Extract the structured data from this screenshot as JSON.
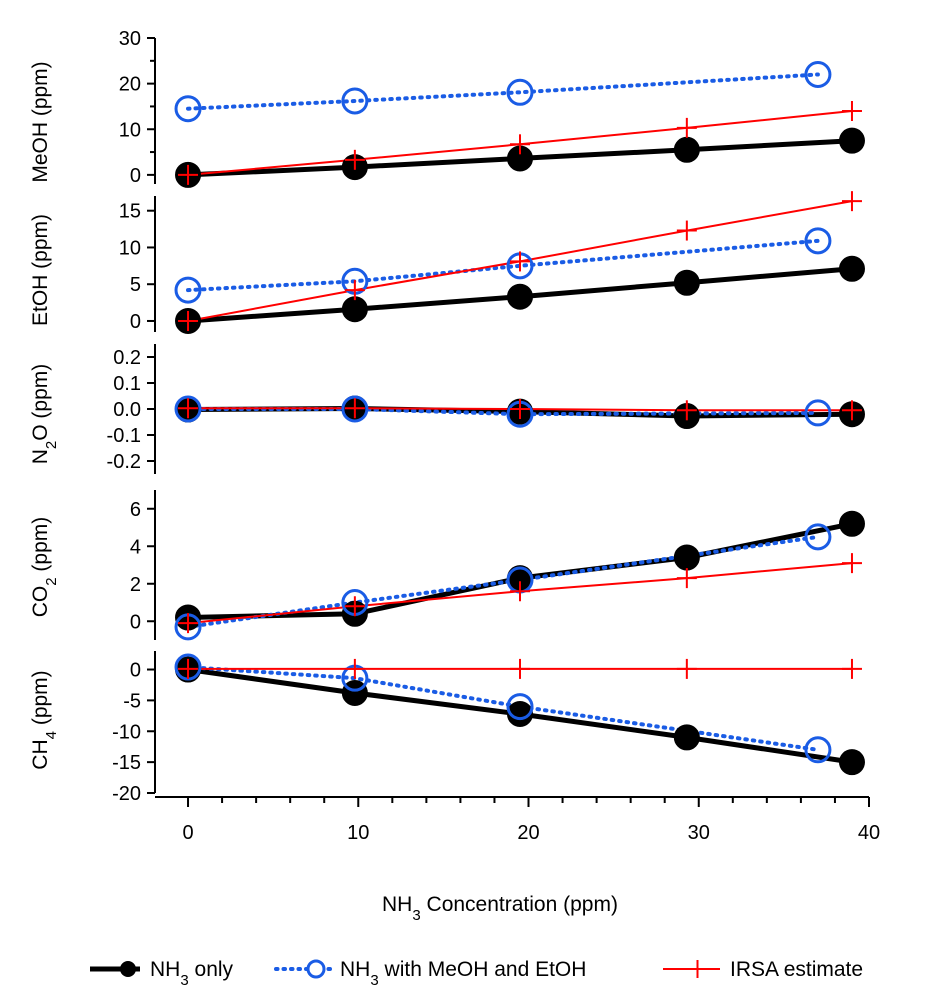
{
  "chart_data": {
    "type": "line",
    "xlabel": {
      "pre": "NH",
      "sub": "3",
      "post": " Concentration (ppm)"
    },
    "xlim": [
      -1,
      40
    ],
    "x_ticks": [
      0,
      10,
      20,
      30,
      40
    ],
    "series_styles": [
      {
        "key": "nh3_only",
        "color": "#000000",
        "marker": "filled-circle",
        "line": "solid-thick"
      },
      {
        "key": "nh3_meoh_etoh",
        "color": "#1a5ce5",
        "marker": "open-circle",
        "line": "dotted"
      },
      {
        "key": "irsa",
        "color": "#ff0000",
        "marker": "plus",
        "line": "solid-thin"
      }
    ],
    "panels": [
      {
        "id": "meoh",
        "ylabel": {
          "pre": "MeOH (ppm)",
          "sub": "",
          "post": ""
        },
        "ylim": [
          -2,
          30
        ],
        "ticks": [
          0,
          10,
          20,
          30
        ],
        "minor_ticks": [
          5,
          15,
          25
        ],
        "series": {
          "nh3_only": {
            "x": [
              0,
              9.8,
              19.5,
              29.3,
              39.0
            ],
            "y": [
              0,
              1.7,
              3.6,
              5.5,
              7.5
            ]
          },
          "nh3_meoh_etoh": {
            "x": [
              0,
              9.8,
              19.5,
              37.0
            ],
            "y": [
              14.5,
              16.2,
              18.1,
              22.0
            ]
          },
          "irsa": {
            "x": [
              0,
              9.8,
              19.5,
              29.3,
              39.0
            ],
            "y": [
              0,
              3.3,
              6.7,
              10.3,
              14.0
            ]
          }
        }
      },
      {
        "id": "etoh",
        "ylabel": {
          "pre": "EtOH (ppm)",
          "sub": "",
          "post": ""
        },
        "ylim": [
          -1.5,
          17
        ],
        "ticks": [
          0,
          5,
          10,
          15
        ],
        "minor_ticks": [],
        "series": {
          "nh3_only": {
            "x": [
              0,
              9.8,
              19.5,
              29.3,
              39.0
            ],
            "y": [
              0,
              1.6,
              3.3,
              5.2,
              7.1
            ]
          },
          "nh3_meoh_etoh": {
            "x": [
              0,
              9.8,
              19.5,
              37.0
            ],
            "y": [
              4.2,
              5.4,
              7.5,
              10.9
            ]
          },
          "irsa": {
            "x": [
              0,
              9.8,
              19.5,
              29.3,
              39.0
            ],
            "y": [
              0,
              4.2,
              8.1,
              12.3,
              16.3
            ]
          }
        }
      },
      {
        "id": "n2o",
        "ylabel": {
          "pre": "N",
          "sub": "2",
          "post": "O (ppm)"
        },
        "ylim": [
          -0.25,
          0.25
        ],
        "ticks": [
          0.2,
          0.1,
          0.0,
          -0.1,
          -0.2
        ],
        "tick_labels": [
          "0.2",
          "0.1",
          "0.0",
          "-0.1",
          "-0.2"
        ],
        "minor_ticks": [],
        "series": {
          "nh3_only": {
            "x": [
              0,
              9.8,
              19.5,
              29.3,
              39.0
            ],
            "y": [
              -0.002,
              0.002,
              -0.01,
              -0.027,
              -0.02
            ]
          },
          "nh3_meoh_etoh": {
            "x": [
              0,
              9.8,
              19.5,
              37.0
            ],
            "y": [
              0.0,
              0.0,
              -0.02,
              -0.015
            ]
          },
          "irsa": {
            "x": [
              0,
              9.8,
              19.5,
              29.3,
              39.0
            ],
            "y": [
              0.003,
              0.003,
              0.0,
              -0.005,
              -0.005
            ]
          }
        }
      },
      {
        "id": "co2",
        "ylabel": {
          "pre": "CO",
          "sub": "2",
          "post": " (ppm)"
        },
        "ylim": [
          -1,
          7
        ],
        "ticks": [
          0,
          2,
          4,
          6
        ],
        "minor_ticks": [],
        "series": {
          "nh3_only": {
            "x": [
              0,
              9.8,
              19.5,
              29.3,
              39.0
            ],
            "y": [
              0.2,
              0.4,
              2.3,
              3.4,
              5.2
            ]
          },
          "nh3_meoh_etoh": {
            "x": [
              0,
              9.8,
              19.5,
              37.0
            ],
            "y": [
              -0.3,
              1.0,
              2.2,
              4.5
            ]
          },
          "irsa": {
            "x": [
              0,
              9.8,
              19.5,
              29.3,
              39.0
            ],
            "y": [
              -0.1,
              0.8,
              1.6,
              2.3,
              3.1
            ]
          }
        }
      },
      {
        "id": "ch4",
        "ylabel": {
          "pre": "CH",
          "sub": "4",
          "post": " (ppm)"
        },
        "ylim": [
          -20,
          3
        ],
        "ticks": [
          0,
          -5,
          -10,
          -15,
          -20
        ],
        "minor_ticks": [],
        "series": {
          "nh3_only": {
            "x": [
              0,
              9.8,
              19.5,
              29.3,
              39.0
            ],
            "y": [
              0.0,
              -3.8,
              -7.2,
              -11.0,
              -15.0
            ]
          },
          "nh3_meoh_etoh": {
            "x": [
              0,
              9.8,
              19.5,
              37.0
            ],
            "y": [
              0.4,
              -1.4,
              -6.0,
              -13.0
            ]
          },
          "irsa": {
            "x": [
              0,
              9.8,
              19.5,
              29.3,
              39.0
            ],
            "y": [
              0.1,
              0.1,
              0.1,
              0.1,
              0.1
            ]
          }
        }
      }
    ],
    "legend": [
      {
        "key": "nh3_only",
        "pre": "NH",
        "sub": "3",
        "post": " only"
      },
      {
        "key": "nh3_meoh_etoh",
        "pre": "NH",
        "sub": "3",
        "post": " with MeOH and EtOH"
      },
      {
        "key": "irsa",
        "pre": "IRSA estimate",
        "sub": "",
        "post": ""
      }
    ]
  }
}
